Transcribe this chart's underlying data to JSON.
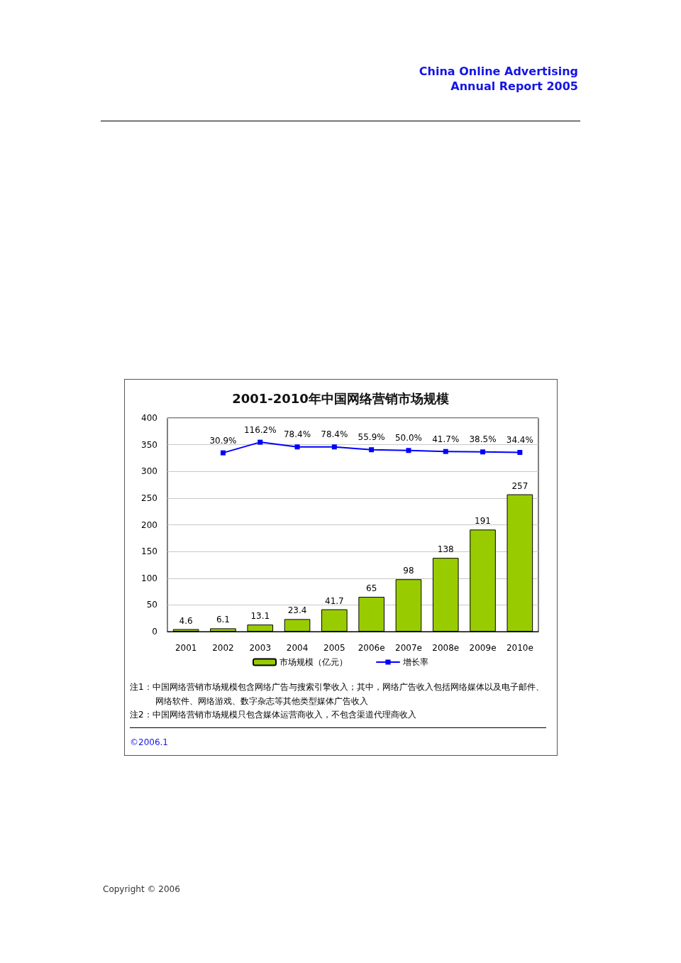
{
  "chart_data": {
    "type": "bar",
    "title": "2001-2010年中国网络营销市场规模",
    "categories": [
      "2001",
      "2002",
      "2003",
      "2004",
      "2005",
      "2006e",
      "2007e",
      "2008e",
      "2009e",
      "2010e"
    ],
    "series": [
      {
        "name": "市场规模（亿元）",
        "color": "#99cc00",
        "values": [
          4.6,
          6.1,
          13.1,
          23.4,
          41.7,
          65,
          98,
          138,
          191,
          257
        ],
        "value_labels": [
          "4.6",
          "6.1",
          "13.1",
          "23.4",
          "41.7",
          "65",
          "98",
          "138",
          "191",
          "257"
        ]
      },
      {
        "name": "增长率",
        "type": "line",
        "axis": "y2",
        "color": "#0000ff",
        "values": [
          null,
          30.9,
          116.2,
          78.4,
          78.4,
          55.9,
          50.0,
          41.7,
          38.5,
          34.4
        ],
        "value_labels": [
          null,
          "30.9%",
          "116.2%",
          "78.4%",
          "78.4%",
          "55.9%",
          "50.0%",
          "41.7%",
          "38.5%",
          "34.4%"
        ]
      }
    ],
    "ylim": [
      0,
      400
    ],
    "yticks": [
      0,
      50,
      100,
      150,
      200,
      250,
      300,
      350,
      400
    ],
    "y2lim": [
      -1400,
      310
    ],
    "grid": "y",
    "legend": "bottom",
    "marker": "square",
    "annotations": [
      "China Online Advertising Annual Report 2005",
      "注1：中国网络营销市场规模包含网络广告与搜索引擎收入；其中，网络广告收入包括网络媒体以及电子邮件、网络软件、网络游戏、数字杂志等其他类型媒体广告收入",
      "注2：中国网络营销市场规模只包含媒体运营商收入，不包含渠道代理商收入",
      "©2006.1",
      "Copyright © 2006"
    ]
  }
}
